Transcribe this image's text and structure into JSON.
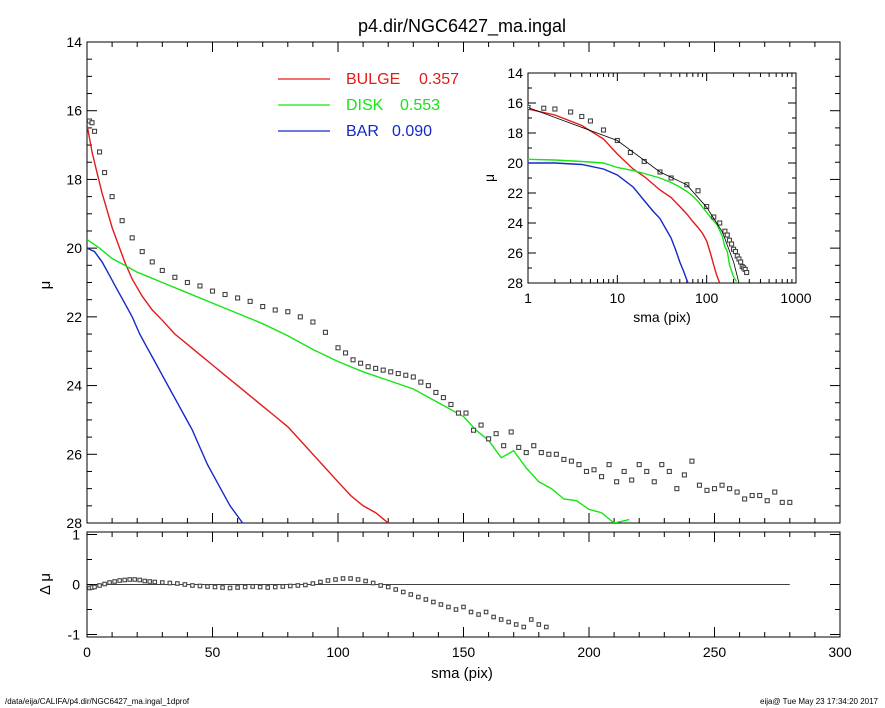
{
  "title": "p4.dir/NGC6427_ma.ingal",
  "footer_left": "/data/eija/CALIFA/p4.dir/NGC6427_ma.ingal_1dprof",
  "footer_right": "eija@  Tue May 23 17:34:20 2017",
  "colors": {
    "bulge": "#e31a1a",
    "disk": "#14e614",
    "bar": "#1428c8",
    "points": "#444444"
  },
  "chart_data": [
    {
      "panel": "main",
      "type": "line",
      "xlabel": "",
      "ylabel": "μ",
      "xlim": [
        0,
        300
      ],
      "ylim": [
        28,
        14
      ],
      "y_ticks": [
        14,
        16,
        18,
        20,
        22,
        24,
        26,
        28
      ],
      "legend": [
        {
          "label": "BULGE",
          "value": "0.357",
          "color": "#e31a1a"
        },
        {
          "label": "DISK",
          "value": "0.553",
          "color": "#14e614"
        },
        {
          "label": "BAR",
          "value": "0.090",
          "color": "#1428c8"
        }
      ],
      "series": [
        {
          "name": "BULGE",
          "color": "#e31a1a",
          "x": [
            0,
            2,
            4,
            6,
            8,
            10,
            12,
            15,
            18,
            22,
            26,
            30,
            35,
            40,
            45,
            50,
            55,
            60,
            65,
            70,
            75,
            80,
            85,
            90,
            95,
            100,
            105,
            110,
            115,
            120
          ],
          "y": [
            16.4,
            17.2,
            17.8,
            18.4,
            18.9,
            19.4,
            19.8,
            20.4,
            20.9,
            21.4,
            21.8,
            22.1,
            22.5,
            22.8,
            23.1,
            23.4,
            23.7,
            24.0,
            24.3,
            24.6,
            24.9,
            25.2,
            25.6,
            26.0,
            26.4,
            26.8,
            27.2,
            27.5,
            27.7,
            28.0
          ]
        },
        {
          "name": "DISK",
          "color": "#14e614",
          "x": [
            0,
            5,
            10,
            15,
            20,
            25,
            30,
            40,
            50,
            60,
            70,
            80,
            90,
            100,
            110,
            120,
            130,
            140,
            150,
            155,
            160,
            165,
            170,
            175,
            180,
            185,
            190,
            195,
            200,
            205,
            210,
            216
          ],
          "y": [
            19.75,
            20.0,
            20.3,
            20.5,
            20.7,
            20.85,
            21.0,
            21.3,
            21.6,
            21.9,
            22.2,
            22.55,
            22.95,
            23.3,
            23.6,
            23.85,
            24.1,
            24.5,
            24.9,
            25.3,
            25.6,
            26.1,
            25.9,
            26.4,
            26.8,
            27.0,
            27.3,
            27.35,
            27.6,
            27.7,
            28.0,
            27.9
          ]
        },
        {
          "name": "BAR",
          "color": "#1428c8",
          "x": [
            0,
            3,
            6,
            9,
            12,
            15,
            18,
            21,
            24,
            27,
            30,
            33,
            36,
            39,
            42,
            45,
            48,
            51,
            54,
            57,
            60,
            62
          ],
          "y": [
            20.0,
            20.1,
            20.4,
            20.8,
            21.2,
            21.6,
            22.0,
            22.5,
            22.9,
            23.3,
            23.7,
            24.1,
            24.5,
            24.9,
            25.3,
            25.8,
            26.3,
            26.7,
            27.1,
            27.5,
            27.8,
            28.0
          ]
        },
        {
          "name": "",
          "color": "#444444",
          "marker": "square",
          "x": [
            1,
            2,
            3,
            5,
            7,
            10,
            14,
            18,
            22,
            26,
            30,
            35,
            40,
            45,
            50,
            55,
            60,
            65,
            70,
            75,
            80,
            85,
            90,
            95,
            100,
            103,
            106,
            109,
            112,
            115,
            118,
            121,
            124,
            127,
            130,
            133,
            136,
            139,
            142,
            145,
            148,
            151,
            154,
            157,
            160,
            163,
            166,
            169,
            172,
            175,
            178,
            181,
            184,
            187,
            190,
            193,
            196,
            199,
            202,
            205,
            208,
            211,
            214,
            217,
            220,
            223,
            226,
            229,
            232,
            235,
            238,
            241,
            244,
            247,
            250,
            253,
            256,
            259,
            262,
            265,
            268,
            271,
            274,
            277,
            280
          ],
          "y": [
            16.3,
            16.35,
            16.6,
            17.2,
            17.8,
            18.5,
            19.2,
            19.7,
            20.1,
            20.4,
            20.65,
            20.85,
            21.0,
            21.1,
            21.25,
            21.35,
            21.45,
            21.55,
            21.7,
            21.8,
            21.85,
            22.0,
            22.15,
            22.45,
            22.9,
            23.05,
            23.25,
            23.35,
            23.45,
            23.5,
            23.55,
            23.6,
            23.65,
            23.7,
            23.75,
            23.9,
            24.0,
            24.2,
            24.35,
            24.55,
            24.8,
            24.8,
            25.3,
            25.15,
            25.55,
            25.4,
            25.75,
            25.35,
            25.8,
            25.95,
            25.75,
            25.95,
            26.0,
            26.0,
            26.15,
            26.2,
            26.3,
            26.5,
            26.45,
            26.65,
            26.3,
            26.8,
            26.5,
            26.75,
            26.3,
            26.5,
            26.8,
            26.3,
            26.5,
            27.0,
            26.6,
            26.2,
            26.9,
            27.05,
            27.0,
            26.9,
            27.0,
            27.1,
            27.3,
            27.2,
            27.2,
            27.35,
            27.1,
            27.4,
            27.4
          ]
        }
      ]
    },
    {
      "panel": "residual",
      "type": "scatter",
      "xlabel": "sma (pix)",
      "ylabel": "Δ μ",
      "xlim": [
        0,
        300
      ],
      "ylim": [
        -1.05,
        1.05
      ],
      "x_ticks": [
        0,
        50,
        100,
        150,
        200,
        250,
        300
      ],
      "y_ticks": [
        1,
        0,
        -1
      ],
      "series": [
        {
          "name": "",
          "color": "#444444",
          "marker": "square",
          "x": [
            1,
            2,
            3,
            5,
            7,
            9,
            11,
            13,
            15,
            17,
            19,
            21,
            23,
            25,
            27,
            30,
            33,
            36,
            39,
            42,
            45,
            48,
            51,
            54,
            57,
            60,
            63,
            66,
            69,
            72,
            75,
            78,
            81,
            84,
            87,
            90,
            93,
            96,
            99,
            102,
            105,
            108,
            111,
            114,
            117,
            120,
            123,
            126,
            129,
            132,
            135,
            138,
            141,
            144,
            147,
            150,
            153,
            156,
            159,
            162,
            165,
            168,
            171,
            174,
            177,
            180,
            183
          ],
          "y": [
            -0.07,
            -0.06,
            -0.05,
            -0.02,
            0.01,
            0.04,
            0.06,
            0.08,
            0.09,
            0.1,
            0.1,
            0.09,
            0.07,
            0.06,
            0.05,
            0.04,
            0.03,
            0.02,
            0.0,
            -0.02,
            -0.03,
            -0.04,
            -0.05,
            -0.06,
            -0.07,
            -0.06,
            -0.05,
            -0.04,
            -0.05,
            -0.06,
            -0.05,
            -0.04,
            -0.03,
            -0.02,
            -0.01,
            0.02,
            0.05,
            0.08,
            0.1,
            0.12,
            0.12,
            0.1,
            0.07,
            0.03,
            -0.02,
            -0.05,
            -0.1,
            -0.15,
            -0.2,
            -0.25,
            -0.3,
            -0.35,
            -0.4,
            -0.45,
            -0.5,
            -0.45,
            -0.55,
            -0.6,
            -0.55,
            -0.65,
            -0.7,
            -0.75,
            -0.8,
            -0.85,
            -0.7,
            -0.8,
            -0.85
          ]
        }
      ]
    },
    {
      "panel": "inset",
      "type": "line",
      "xlabel": "sma (pix)",
      "ylabel": "μ",
      "xscale": "log",
      "xlim": [
        1,
        1000
      ],
      "ylim": [
        28,
        14
      ],
      "x_ticks": [
        1,
        10,
        100,
        1000
      ],
      "y_ticks": [
        14,
        16,
        18,
        20,
        22,
        24,
        26,
        28
      ],
      "series": [
        {
          "name": "BULGE",
          "color": "#e31a1a",
          "x": [
            1,
            2,
            4,
            7,
            10,
            15,
            20,
            30,
            40,
            50,
            60,
            70,
            80,
            90,
            100,
            110,
            120,
            130,
            140
          ],
          "y": [
            16.4,
            16.8,
            17.5,
            18.4,
            19.4,
            20.4,
            20.9,
            21.8,
            22.3,
            22.9,
            23.4,
            23.9,
            24.3,
            24.7,
            25.2,
            26.0,
            26.8,
            27.5,
            28.0
          ]
        },
        {
          "name": "DISK",
          "color": "#14e614",
          "x": [
            1,
            2,
            4,
            7,
            10,
            15,
            20,
            30,
            40,
            50,
            60,
            70,
            80,
            90,
            100,
            110,
            120,
            130,
            140,
            150,
            160,
            170,
            180,
            190,
            200,
            216
          ],
          "y": [
            19.75,
            19.8,
            19.9,
            20.0,
            20.3,
            20.5,
            20.7,
            21.0,
            21.3,
            21.6,
            21.9,
            22.2,
            22.55,
            22.95,
            23.3,
            23.6,
            23.85,
            24.1,
            24.5,
            24.9,
            25.6,
            25.9,
            26.8,
            27.2,
            27.6,
            27.9
          ]
        },
        {
          "name": "BAR",
          "color": "#1428c8",
          "x": [
            1,
            2,
            4,
            7,
            10,
            15,
            20,
            25,
            30,
            35,
            40,
            45,
            50,
            55,
            60,
            62
          ],
          "y": [
            20.0,
            20.0,
            20.1,
            20.4,
            20.8,
            21.6,
            22.5,
            23.2,
            23.7,
            24.4,
            25.0,
            25.8,
            26.6,
            27.2,
            27.8,
            28.0
          ]
        },
        {
          "name": "",
          "color": "#444444",
          "marker": "square",
          "x": [
            1,
            1.5,
            2,
            3,
            4,
            5,
            7,
            10,
            14,
            20,
            30,
            40,
            60,
            80,
            100,
            120,
            140,
            160,
            170,
            180,
            190,
            200,
            210,
            220,
            230,
            240,
            250,
            260,
            270,
            280
          ],
          "y": [
            16.3,
            16.35,
            16.4,
            16.6,
            16.9,
            17.2,
            17.8,
            18.5,
            19.3,
            19.9,
            20.6,
            21.0,
            21.45,
            21.85,
            22.9,
            23.6,
            24.0,
            24.55,
            24.8,
            25.15,
            25.4,
            25.75,
            25.9,
            26.2,
            26.4,
            26.6,
            26.9,
            27.0,
            27.1,
            27.3
          ]
        }
      ]
    }
  ]
}
